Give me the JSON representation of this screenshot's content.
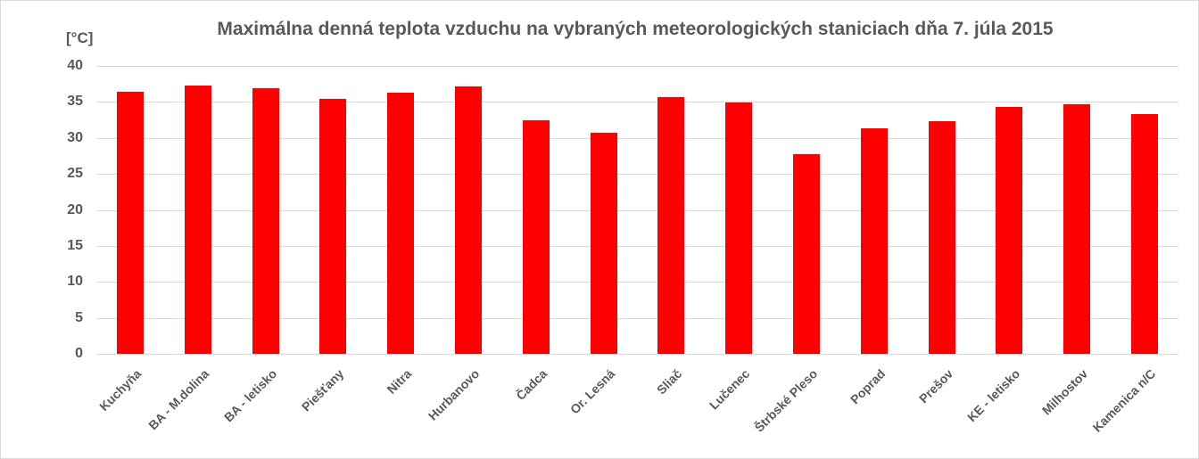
{
  "chart": {
    "title": "Maximálna denná teplota vzduchu na vybraných meteorologických staniciach dňa 7. júla 2015",
    "unit_label": "[°C]",
    "yticks": [
      "0",
      "5",
      "10",
      "15",
      "20",
      "25",
      "30",
      "35",
      "40"
    ]
  },
  "chart_data": {
    "type": "bar",
    "title": "Maximálna denná teplota vzduchu na vybraných meteorologických staniciach dňa 7. júla 2015",
    "xlabel": "",
    "ylabel": "[°C]",
    "ylim": [
      0,
      40
    ],
    "yticks": [
      0,
      5,
      10,
      15,
      20,
      25,
      30,
      35,
      40
    ],
    "grid": true,
    "legend": "none",
    "color": "#ff0000",
    "categories": [
      "Kuchyňa",
      "BA - M.dolina",
      "BA - letisko",
      "Piešťany",
      "Nitra",
      "Hurbanovo",
      "Čadca",
      "Or. Lesná",
      "Sliač",
      "Lučenec",
      "Štrbské Pleso",
      "Poprad",
      "Prešov",
      "KE - letisko",
      "Milhostov",
      "Kamenica n/C"
    ],
    "values": [
      36.4,
      37.3,
      36.9,
      35.4,
      36.3,
      37.1,
      32.5,
      30.7,
      35.7,
      34.9,
      27.7,
      31.3,
      32.3,
      34.3,
      34.7,
      33.3
    ]
  }
}
